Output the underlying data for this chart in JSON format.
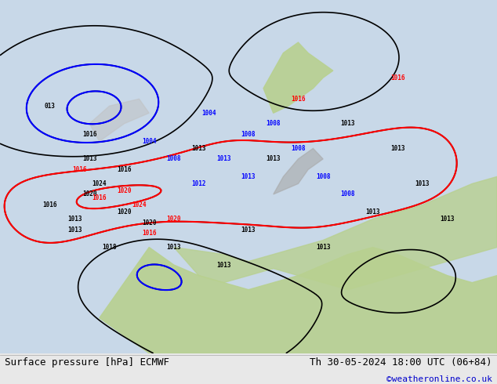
{
  "title_left": "Surface pressure [hPa] ECMWF",
  "title_right": "Th 30-05-2024 18:00 UTC (06+84)",
  "copyright": "©weatheronline.co.uk",
  "copyright_color": "#0000cc",
  "bg_color": "#d4e8b0",
  "ocean_color": "#c8d8e8",
  "land_color": "#c8dba0",
  "contour_colors": {
    "low": "#000000",
    "high_red": "#cc0000",
    "blue": "#0000cc"
  },
  "footer_bg": "#e8e8e8",
  "footer_text_color": "#000000",
  "fig_width": 6.34,
  "fig_height": 4.9,
  "dpi": 100,
  "pressure_labels_black": [
    "1013",
    "1013",
    "1013",
    "1013",
    "1013",
    "1013",
    "1008",
    "1013",
    "1013",
    "1018"
  ],
  "pressure_labels_red": [
    "1016",
    "1020",
    "1020",
    "1024",
    "1020",
    "1016",
    "1016"
  ],
  "pressure_labels_blue": [
    "1004",
    "1008",
    "1008",
    "1008",
    "1008",
    "1008",
    "1012",
    "1013"
  ]
}
